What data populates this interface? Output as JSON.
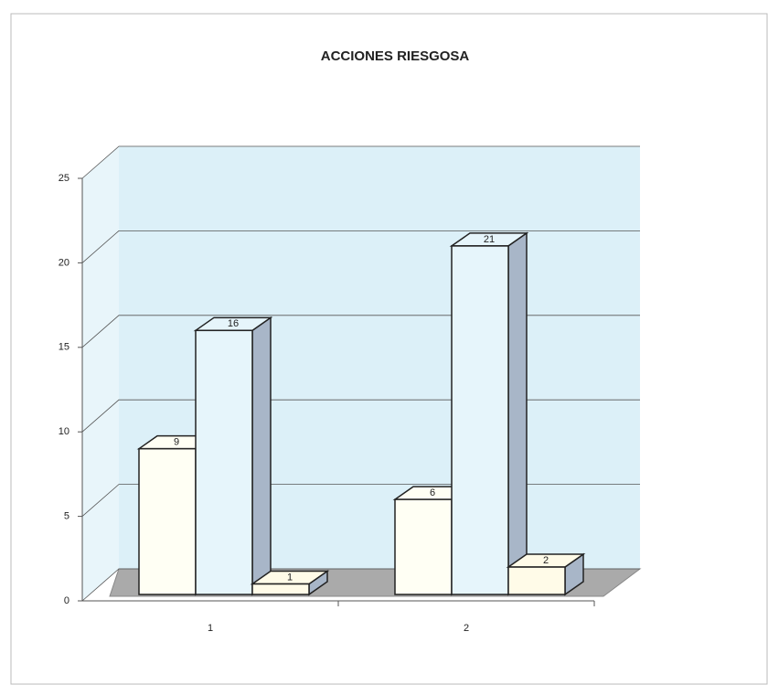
{
  "chart_data": {
    "type": "bar3d",
    "title": "ACCIONES RIESGOSA",
    "categories": [
      "1",
      "2"
    ],
    "series": [
      {
        "color": "#fffff4",
        "values": [
          9,
          6
        ]
      },
      {
        "color": "#e6f5fb",
        "values": [
          16,
          21
        ]
      },
      {
        "color": "#fffbe8",
        "values": [
          1,
          2
        ]
      }
    ],
    "ylim": [
      0,
      25
    ],
    "yticks": [
      0,
      5,
      10,
      15,
      20,
      25
    ],
    "grid": true
  }
}
